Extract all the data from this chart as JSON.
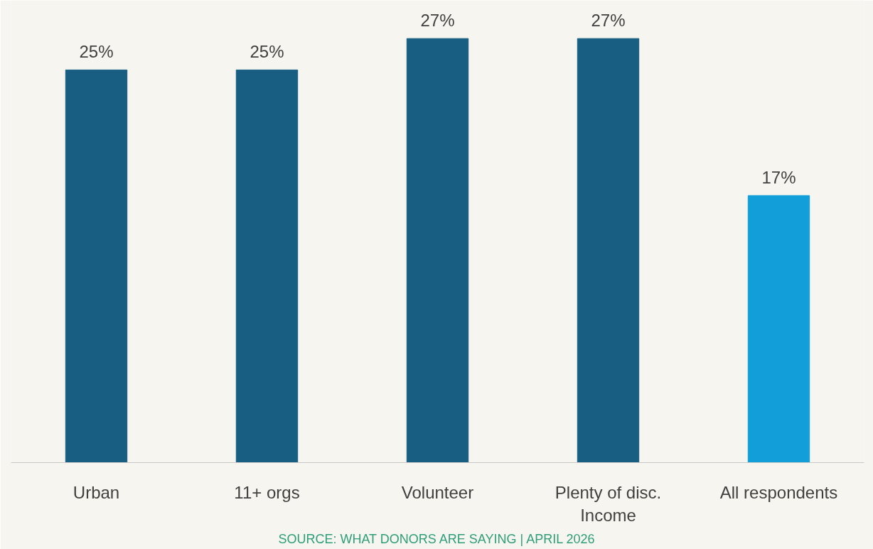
{
  "chart_data": {
    "type": "bar",
    "categories": [
      "Urban",
      "11+ orgs",
      "Volunteer",
      "Plenty of disc. Income",
      "All respondents"
    ],
    "values": [
      25,
      25,
      27,
      27,
      17
    ],
    "value_labels": [
      "25%",
      "25%",
      "27%",
      "27%",
      "17%"
    ],
    "colors": [
      "#175e82",
      "#175e82",
      "#175e82",
      "#175e82",
      "#129fd9"
    ],
    "grid": false,
    "annotations": [
      "SOURCE: WHAT DONORS ARE SAYING | APRIL 2026"
    ]
  }
}
